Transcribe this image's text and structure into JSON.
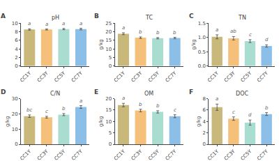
{
  "chart_data": [
    {
      "type": "bar",
      "panel_label": "A",
      "title": "pH",
      "categories": [
        "CC1Y",
        "CC3Y",
        "CC5Y",
        "CC7Y"
      ],
      "values": [
        8.5,
        8.5,
        8.6,
        8.6
      ],
      "errors": [
        0.15,
        0.12,
        0.15,
        0.18
      ],
      "colors": [
        "#c8b87a",
        "#f5c07a",
        "#a8ddd0",
        "#8bbfe8"
      ],
      "annotations": [
        "a",
        "a",
        "a",
        "a"
      ],
      "ylim": [
        0,
        10
      ],
      "yticks": [
        0,
        2,
        4,
        6,
        8,
        10
      ],
      "grid": false
    },
    {
      "type": "bar",
      "panel_label": "B",
      "title": "TC",
      "ylabel": "g/kg",
      "categories": [
        "CC1Y",
        "CC3Y",
        "CC5Y",
        "CC7Y"
      ],
      "values": [
        18.8,
        16.5,
        16.2,
        16.3
      ],
      "errors": [
        0.55,
        0.45,
        0.38,
        0.42
      ],
      "colors": [
        "#c8b87a",
        "#f5c07a",
        "#a8ddd0",
        "#8bbfe8"
      ],
      "annotations": [
        "a",
        "b",
        "b",
        "b"
      ],
      "ylim": [
        0,
        25
      ],
      "yticks": [
        0,
        5,
        10,
        15,
        20,
        25
      ],
      "grid": false
    },
    {
      "type": "bar",
      "panel_label": "C",
      "title": "TN",
      "ylabel": "g/kg",
      "categories": [
        "CC1Y",
        "CC3Y",
        "CC5Y",
        "CC7Y"
      ],
      "values": [
        1.02,
        0.97,
        0.87,
        0.7
      ],
      "errors": [
        0.07,
        0.06,
        0.05,
        0.04
      ],
      "colors": [
        "#c8b87a",
        "#f5c07a",
        "#a8ddd0",
        "#8bbfe8"
      ],
      "annotations": [
        "a",
        "ab",
        "c",
        "d"
      ],
      "ylim": [
        0.0,
        1.5
      ],
      "yticks": [
        {
          "value": 0,
          "label": "0.0"
        },
        0.5,
        {
          "value": 1,
          "label": "1.0"
        },
        1.5
      ],
      "grid": false
    },
    {
      "type": "bar",
      "panel_label": "D",
      "title": "C/N",
      "ylabel": "g/kg",
      "categories": [
        "CC1Y",
        "CC3Y",
        "CC5Y",
        "CC7Y"
      ],
      "values": [
        18.5,
        17.8,
        19.5,
        24.5
      ],
      "errors": [
        0.8,
        0.6,
        0.7,
        0.9
      ],
      "colors": [
        "#c8b87a",
        "#f5c07a",
        "#a8ddd0",
        "#8bbfe8"
      ],
      "annotations": [
        "bc",
        "c",
        "b",
        "a"
      ],
      "ylim": [
        0,
        30
      ],
      "yticks": [
        0,
        10,
        20,
        30
      ],
      "grid": false
    },
    {
      "type": "bar",
      "panel_label": "E",
      "title": "OM",
      "ylabel": "g/kg",
      "categories": [
        "CC1Y",
        "CC3Y",
        "CC5Y",
        "CC7Y"
      ],
      "values": [
        17.2,
        14.8,
        14.2,
        12.3
      ],
      "errors": [
        0.75,
        0.55,
        0.5,
        0.65
      ],
      "colors": [
        "#c8b87a",
        "#f5c07a",
        "#a8ddd0",
        "#8bbfe8"
      ],
      "annotations": [
        "a",
        "b",
        "b",
        "c"
      ],
      "ylim": [
        0,
        20
      ],
      "yticks": [
        0,
        5,
        10,
        15,
        20
      ],
      "grid": false
    },
    {
      "type": "bar",
      "panel_label": "F",
      "title": "DOC",
      "ylabel": "g/kg",
      "categories": [
        "CC1Y",
        "CC3Y",
        "CC5Y",
        "CC7Y"
      ],
      "values": [
        6.5,
        4.5,
        3.8,
        5.3
      ],
      "errors": [
        0.55,
        0.3,
        0.45,
        0.25
      ],
      "colors": [
        "#c8b87a",
        "#f5c07a",
        "#a8ddd0",
        "#8bbfe8"
      ],
      "annotations": [
        "a",
        "c",
        "d",
        "b"
      ],
      "ylim": [
        0,
        8
      ],
      "yticks": [
        0,
        2,
        4,
        6,
        8
      ],
      "grid": false
    }
  ]
}
